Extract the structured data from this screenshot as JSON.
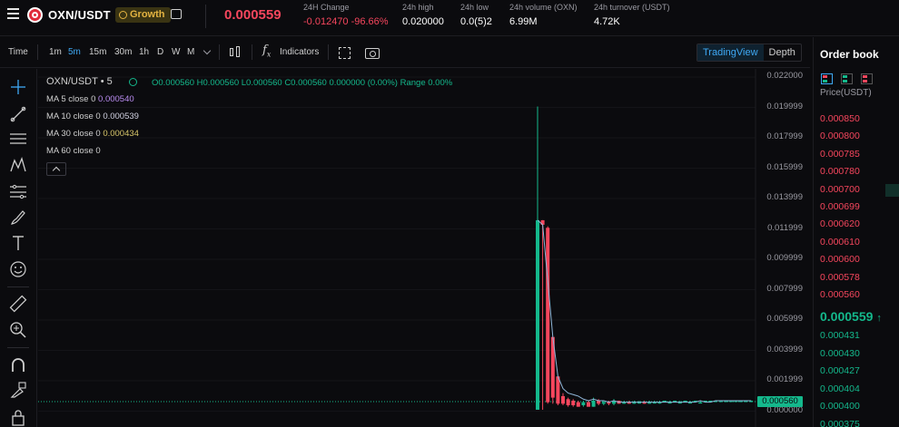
{
  "header": {
    "pair": "OXN/USDT",
    "badge": "Growth",
    "last_price": "0.000559",
    "stats": [
      {
        "label": "24H Change",
        "value": "-0.012470 -96.66%",
        "tone": "red"
      },
      {
        "label": "24h high",
        "value": "0.020000",
        "tone": "white"
      },
      {
        "label": "24h low",
        "value": "0.0(5)2",
        "tone": "white"
      },
      {
        "label": "24h volume (OXN)",
        "value": "6.99M",
        "tone": "white"
      },
      {
        "label": "24h turnover (USDT)",
        "value": "4.72K",
        "tone": "white"
      }
    ]
  },
  "toolbar": {
    "time_label": "Time",
    "intervals": [
      "1m",
      "5m",
      "15m",
      "30m",
      "1h",
      "D",
      "W",
      "M"
    ],
    "active_interval": "5m",
    "indicators_label": "Indicators",
    "views": [
      "TradingView",
      "Depth"
    ],
    "active_view": "TradingView"
  },
  "tools": [
    "crosshair-icon",
    "trend-line-icon",
    "horizontal-lines-icon",
    "pattern-icon",
    "fib-icon",
    "brush-icon",
    "text-icon",
    "emoji-icon",
    "ruler-icon",
    "zoom-icon",
    "magnet-icon",
    "lock-draw-icon",
    "lock-icon"
  ],
  "chart": {
    "legend": {
      "pair": "OXN/USDT • 5",
      "ohlc": "O0.000560 H0.000560 L0.000560 C0.000560 0.000000 (0.00%) Range 0.00%",
      "ma5_label": "MA 5 close 0",
      "ma5_value": "0.000540",
      "ma10_label": "MA 10 close 0",
      "ma10_value": "0.000539",
      "ma30_label": "MA 30 close 0",
      "ma30_value": "0.000434",
      "ma60_label": "MA 60 close 0"
    },
    "y_ticks": [
      "0.022000",
      "0.019999",
      "0.017999",
      "0.015999",
      "0.013999",
      "0.011999",
      "0.009999",
      "0.007999",
      "0.005999",
      "0.003999",
      "0.001999",
      "0.000000"
    ],
    "current_price_tag": "0.000560",
    "colors": {
      "up": "#14b88c",
      "down": "#f6465d",
      "ma": "#8fb6d8"
    }
  },
  "chart_data": {
    "type": "candlestick",
    "ylim": [
      0,
      0.022
    ],
    "up_color": "#14b88c",
    "down_color": "#f6465d",
    "candles": [
      {
        "o": 2e-06,
        "h": 0.019999,
        "l": 2e-06,
        "c": 0.0125,
        "dir": "up"
      },
      {
        "o": 0.0125,
        "h": 0.0125,
        "l": 0.0,
        "c": 0.0122,
        "dir": "down"
      },
      {
        "o": 0.012,
        "h": 0.0121,
        "l": 0.0004,
        "c": 0.0005,
        "dir": "down"
      },
      {
        "o": 0.0048,
        "h": 0.0048,
        "l": 0.0004,
        "c": 0.0008,
        "dir": "down"
      },
      {
        "o": 0.0022,
        "h": 0.0022,
        "l": 0.0003,
        "c": 0.0004,
        "dir": "down"
      },
      {
        "o": 0.0009,
        "h": 0.0011,
        "l": 0.0003,
        "c": 0.0004,
        "dir": "down"
      },
      {
        "o": 0.0007,
        "h": 0.0008,
        "l": 0.0002,
        "c": 0.0003,
        "dir": "down"
      },
      {
        "o": 0.0006,
        "h": 0.0007,
        "l": 0.0002,
        "c": 0.0003,
        "dir": "down"
      },
      {
        "o": 0.0005,
        "h": 0.0006,
        "l": 0.0002,
        "c": 0.0002,
        "dir": "down"
      },
      {
        "o": 0.0003,
        "h": 0.0006,
        "l": 0.0002,
        "c": 0.0005,
        "dir": "up"
      },
      {
        "o": 0.0005,
        "h": 0.0006,
        "l": 0.0002,
        "c": 0.0002,
        "dir": "down"
      },
      {
        "o": 0.0002,
        "h": 0.0008,
        "l": 0.0002,
        "c": 0.0006,
        "dir": "up"
      },
      {
        "o": 0.0006,
        "h": 0.0007,
        "l": 0.0003,
        "c": 0.0004,
        "dir": "down"
      },
      {
        "o": 0.0004,
        "h": 0.0006,
        "l": 0.0003,
        "c": 0.0005,
        "dir": "up"
      },
      {
        "o": 0.0005,
        "h": 0.0006,
        "l": 0.0003,
        "c": 0.0004,
        "dir": "down"
      },
      {
        "o": 0.0004,
        "h": 0.0007,
        "l": 0.0003,
        "c": 0.0006,
        "dir": "up"
      },
      {
        "o": 0.0006,
        "h": 0.0006,
        "l": 0.0004,
        "c": 0.0004,
        "dir": "down"
      },
      {
        "o": 0.0004,
        "h": 0.0006,
        "l": 0.0004,
        "c": 0.0005,
        "dir": "up"
      },
      {
        "o": 0.0005,
        "h": 0.0006,
        "l": 0.0004,
        "c": 0.0004,
        "dir": "down"
      },
      {
        "o": 0.0004,
        "h": 0.0006,
        "l": 0.0004,
        "c": 0.0005,
        "dir": "up"
      },
      {
        "o": 0.0005,
        "h": 0.0006,
        "l": 0.0004,
        "c": 0.0005,
        "dir": "up"
      },
      {
        "o": 0.0005,
        "h": 0.0006,
        "l": 0.0004,
        "c": 0.0004,
        "dir": "down"
      },
      {
        "o": 0.0004,
        "h": 0.0006,
        "l": 0.0004,
        "c": 0.0005,
        "dir": "up"
      },
      {
        "o": 0.0005,
        "h": 0.0006,
        "l": 0.0005,
        "c": 0.0005,
        "dir": "up"
      },
      {
        "o": 0.0005,
        "h": 0.0006,
        "l": 0.0004,
        "c": 0.0005,
        "dir": "up"
      },
      {
        "o": 0.0005,
        "h": 0.0006,
        "l": 0.0005,
        "c": 0.0006,
        "dir": "up"
      },
      {
        "o": 0.0005,
        "h": 0.0006,
        "l": 0.0005,
        "c": 0.0005,
        "dir": "up"
      },
      {
        "o": 0.0005,
        "h": 0.0006,
        "l": 0.0005,
        "c": 0.0006,
        "dir": "up"
      },
      {
        "o": 0.0005,
        "h": 0.0006,
        "l": 0.0005,
        "c": 0.0005,
        "dir": "up"
      },
      {
        "o": 0.0005,
        "h": 0.0006,
        "l": 0.0005,
        "c": 0.0006,
        "dir": "up"
      },
      {
        "o": 0.0005,
        "h": 0.0006,
        "l": 0.0005,
        "c": 0.0005,
        "dir": "up"
      },
      {
        "o": 0.0005,
        "h": 0.0006,
        "l": 0.0005,
        "c": 0.0006,
        "dir": "up"
      },
      {
        "o": 0.0005,
        "h": 0.0006,
        "l": 0.0005,
        "c": 0.0005,
        "dir": "up"
      },
      {
        "o": 0.0005,
        "h": 0.0006,
        "l": 0.0005,
        "c": 0.0006,
        "dir": "up"
      },
      {
        "o": 0.0005,
        "h": 0.0006,
        "l": 0.0005,
        "c": 0.0006,
        "dir": "up"
      },
      {
        "o": 0.0006,
        "h": 0.0006,
        "l": 0.0005,
        "c": 0.0006,
        "dir": "up"
      },
      {
        "o": 0.0006,
        "h": 0.0006,
        "l": 0.0005,
        "c": 0.0006,
        "dir": "up"
      },
      {
        "o": 0.0006,
        "h": 0.0006,
        "l": 0.0005,
        "c": 0.0006,
        "dir": "up"
      },
      {
        "o": 0.0006,
        "h": 0.0006,
        "l": 0.0005,
        "c": 0.0006,
        "dir": "up"
      },
      {
        "o": 0.0006,
        "h": 0.0006,
        "l": 0.0005,
        "c": 0.0006,
        "dir": "up"
      },
      {
        "o": 0.0006,
        "h": 0.0006,
        "l": 0.0005,
        "c": 0.0006,
        "dir": "up"
      },
      {
        "o": 0.0006,
        "h": 0.0006,
        "l": 0.0005,
        "c": 0.0006,
        "dir": "up"
      },
      {
        "o": 0.0006,
        "h": 0.0006,
        "l": 0.0005,
        "c": 0.0006,
        "dir": "up"
      }
    ],
    "ma_series": [
      0.0125,
      0.0122,
      0.0085,
      0.0048,
      0.0022,
      0.0014,
      0.0011,
      0.001,
      0.0009,
      0.0007,
      0.0006,
      0.0007,
      0.0006,
      0.0006,
      0.0005,
      0.0006,
      0.0005,
      0.0005,
      0.0005,
      0.0005,
      0.0005,
      0.0005,
      0.0005,
      0.0005,
      0.0005,
      0.0005,
      0.0005,
      0.0005,
      0.0005,
      0.0005,
      0.0005,
      0.0005,
      0.0006,
      0.0005,
      0.0005,
      0.0006,
      0.0006,
      0.0006,
      0.0006,
      0.0006,
      0.0006,
      0.0006,
      0.0006
    ]
  },
  "orderbook": {
    "title": "Order book",
    "column": "Price(USDT)",
    "asks": [
      "0.000850",
      "0.000800",
      "0.000785",
      "0.000780",
      "0.000700",
      "0.000699",
      "0.000620",
      "0.000610",
      "0.000600",
      "0.000578",
      "0.000560"
    ],
    "mid_price": "0.000559",
    "mid_arrow": "↑",
    "bids": [
      "0.000431",
      "0.000430",
      "0.000427",
      "0.000404",
      "0.000400",
      "0.000375"
    ]
  }
}
